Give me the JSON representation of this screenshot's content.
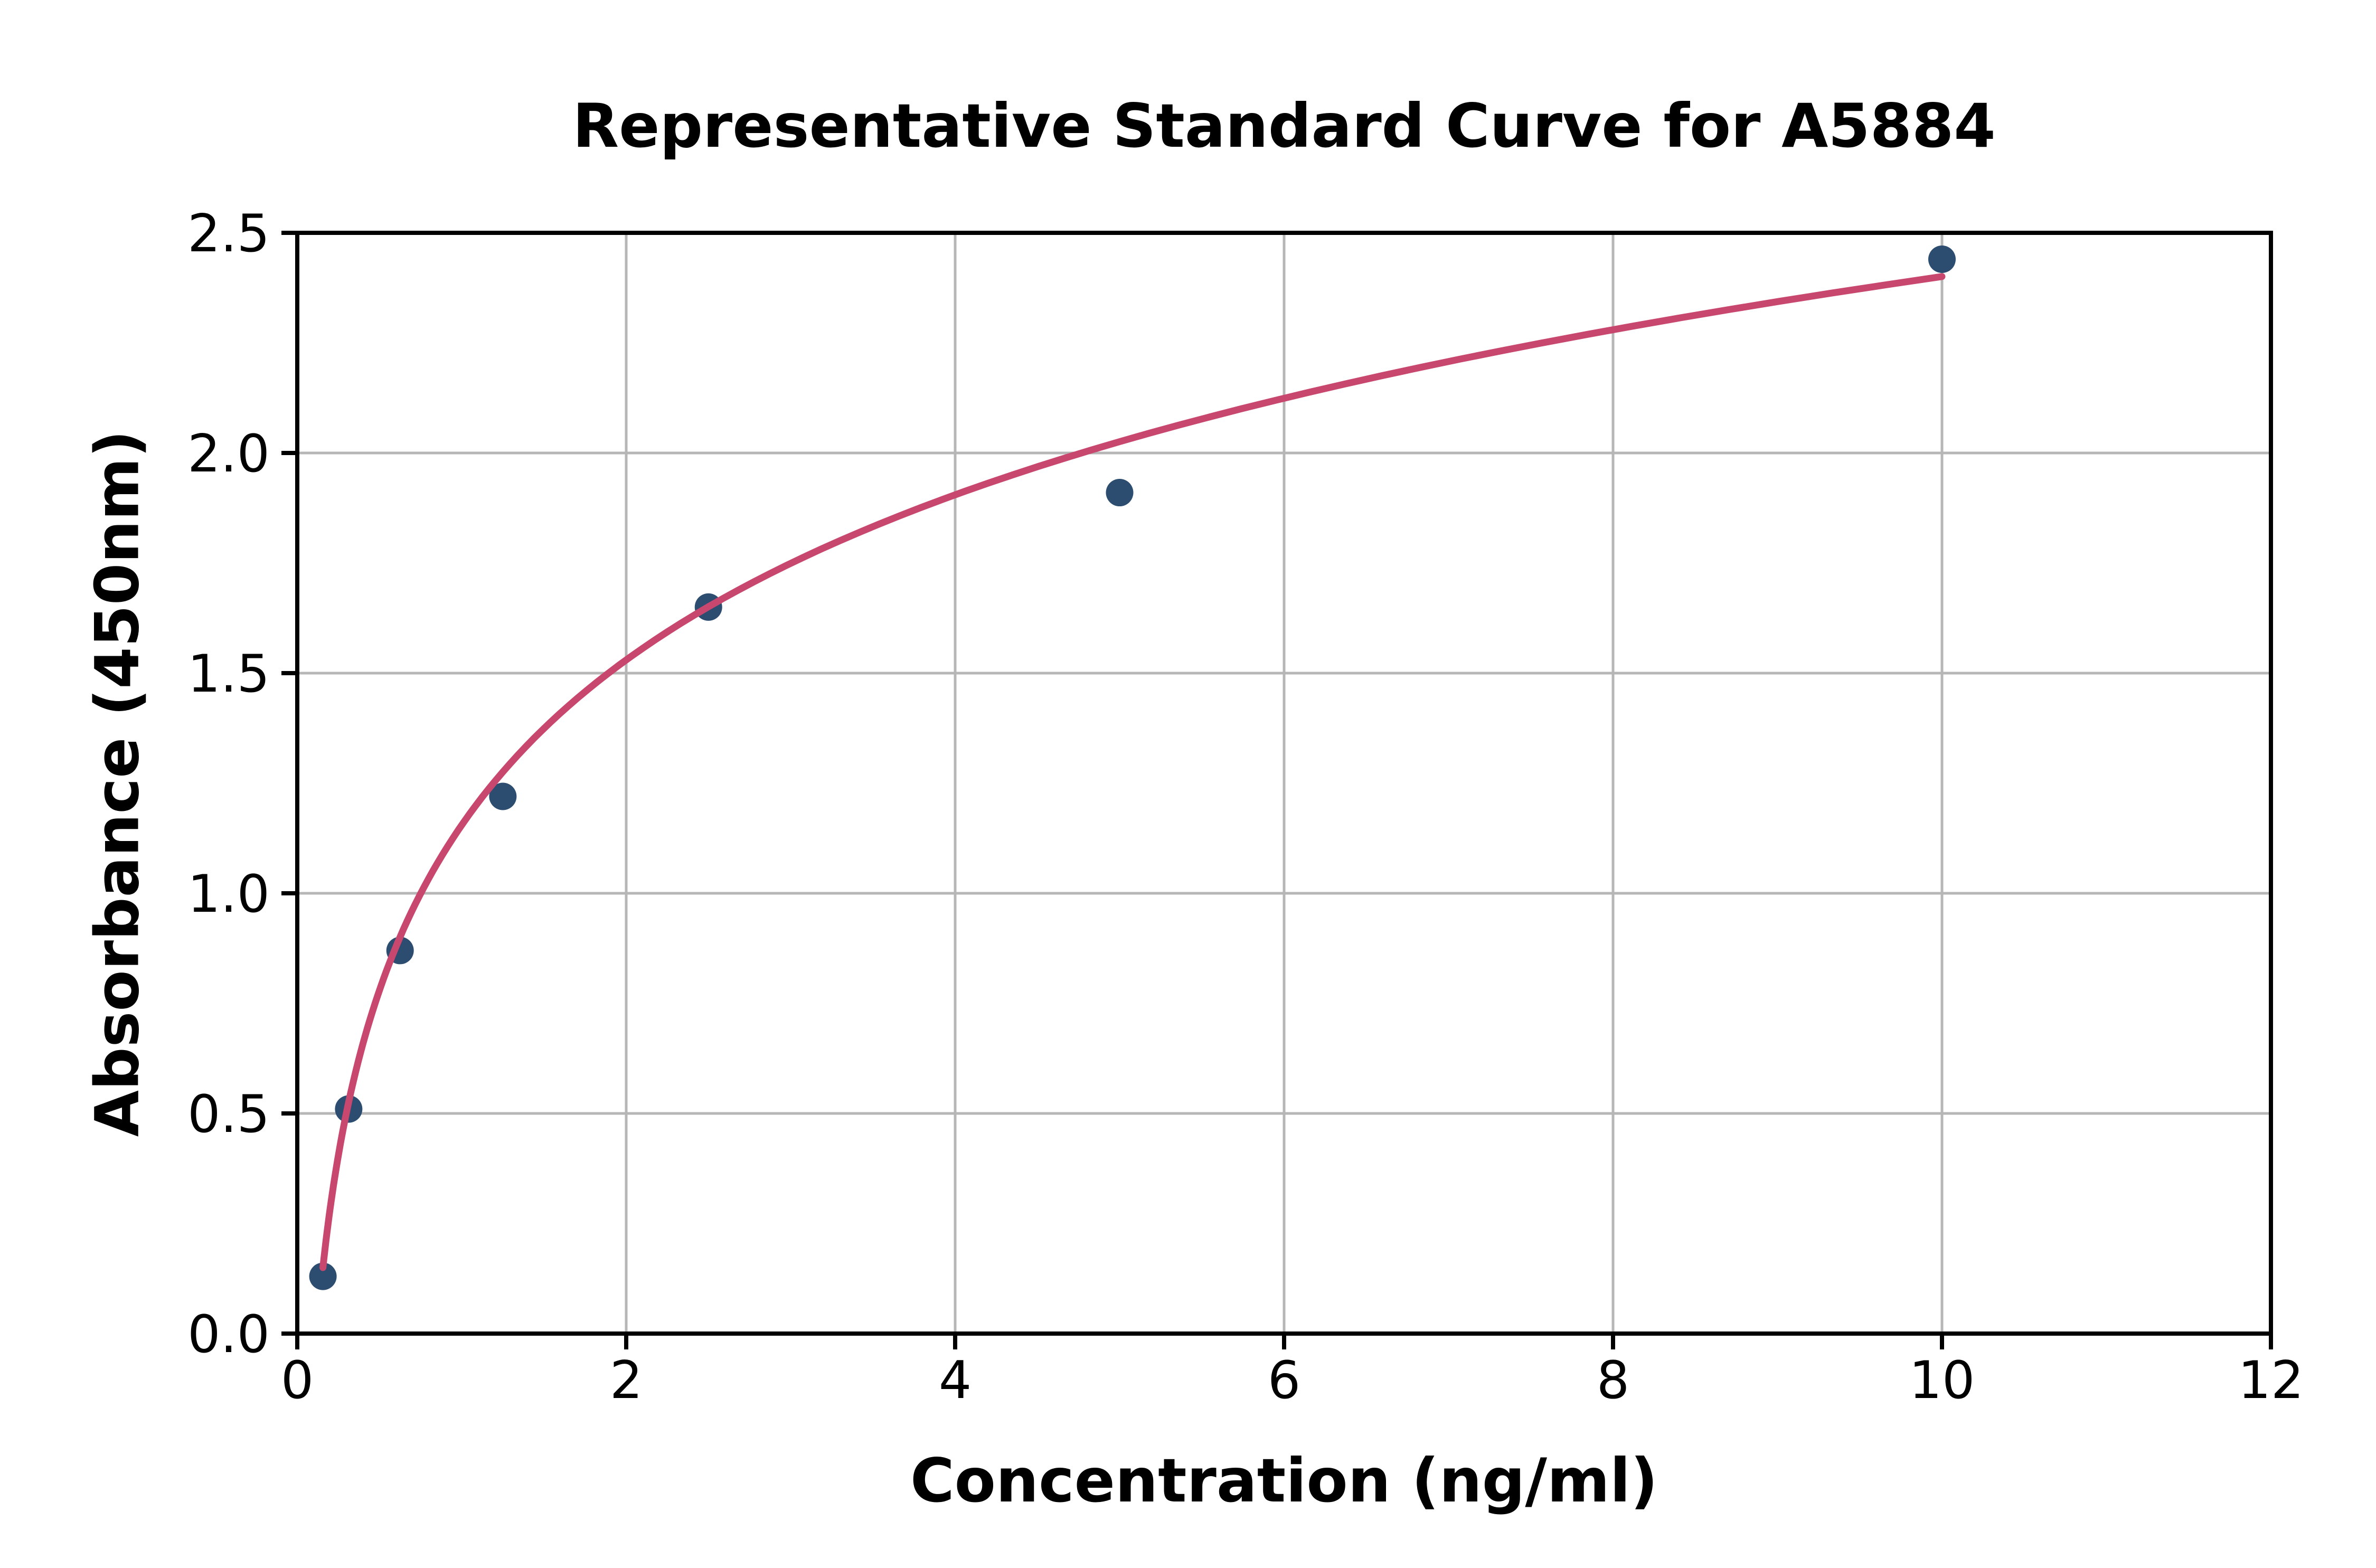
{
  "chart_data": {
    "type": "scatter",
    "title": "Representative Standard Curve for A5884",
    "xlabel": "Concentration (ng/ml)",
    "ylabel": "Absorbance (450nm)",
    "xlim": [
      0,
      12
    ],
    "ylim": [
      0.0,
      2.5
    ],
    "xticks": [
      0,
      2,
      4,
      6,
      8,
      10,
      12
    ],
    "yticks": [
      0.0,
      0.5,
      1.0,
      1.5,
      2.0,
      2.5
    ],
    "grid": true,
    "legend": "none",
    "series": [
      {
        "name": "standard-points",
        "type": "scatter",
        "color": "#2C4D70",
        "points": [
          {
            "x": 0.156,
            "y": 0.13
          },
          {
            "x": 0.3125,
            "y": 0.51
          },
          {
            "x": 0.625,
            "y": 0.87
          },
          {
            "x": 1.25,
            "y": 1.22
          },
          {
            "x": 2.5,
            "y": 1.65
          },
          {
            "x": 5.0,
            "y": 1.91
          },
          {
            "x": 10.0,
            "y": 2.44
          }
        ]
      },
      {
        "name": "fitted-curve",
        "type": "line",
        "color": "#C8476E",
        "fit": {
          "model": "logarithmic",
          "a": 1.155,
          "b": 0.541,
          "x_start": 0.156,
          "x_end": 10.0
        }
      }
    ],
    "colors": {
      "grid": "#B6B6B6",
      "axis": "#000000",
      "background": "#FFFFFF"
    }
  }
}
